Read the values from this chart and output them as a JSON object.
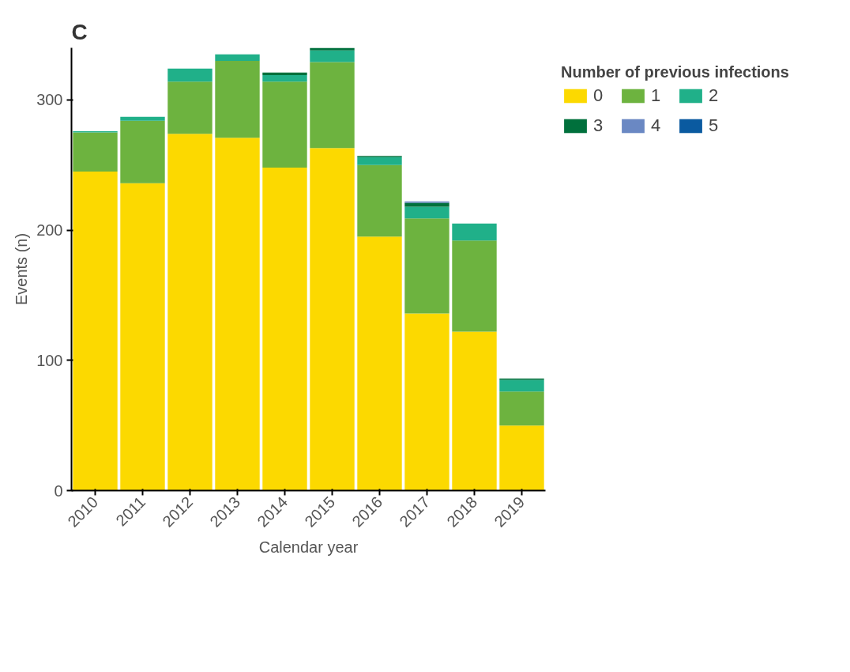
{
  "chart_data": {
    "type": "bar",
    "stacked": true,
    "title": "C",
    "xlabel": "Calendar year",
    "ylabel": "Events (n)",
    "legend_title": "Number of previous infections",
    "legend": "top right",
    "grid": false,
    "categories": [
      "2010",
      "2011",
      "2012",
      "2013",
      "2014",
      "2015",
      "2016",
      "2017",
      "2018",
      "2019"
    ],
    "series": [
      {
        "name": "0",
        "color": "#fcd900",
        "values": [
          245,
          236,
          274,
          271,
          248,
          263,
          195,
          136,
          122,
          50
        ]
      },
      {
        "name": "1",
        "color": "#6db33f",
        "values": [
          30,
          48,
          40,
          59,
          66,
          66,
          55,
          73,
          70,
          26
        ]
      },
      {
        "name": "2",
        "color": "#20b089",
        "values": [
          1,
          3,
          10,
          5,
          5,
          9,
          6,
          9,
          13,
          9
        ]
      },
      {
        "name": "3",
        "color": "#00703c",
        "values": [
          0,
          0,
          0,
          0,
          2,
          2,
          1,
          3,
          0,
          1
        ]
      },
      {
        "name": "4",
        "color": "#6a88c3",
        "values": [
          0,
          0,
          0,
          0,
          0,
          0,
          0,
          1,
          0,
          0
        ]
      },
      {
        "name": "5",
        "color": "#0a5aa0",
        "values": [
          0,
          0,
          0,
          0,
          0,
          0,
          0,
          0,
          0,
          0
        ]
      }
    ],
    "ylim": [
      0,
      340
    ],
    "yticks": [
      0,
      100,
      200,
      300
    ]
  }
}
